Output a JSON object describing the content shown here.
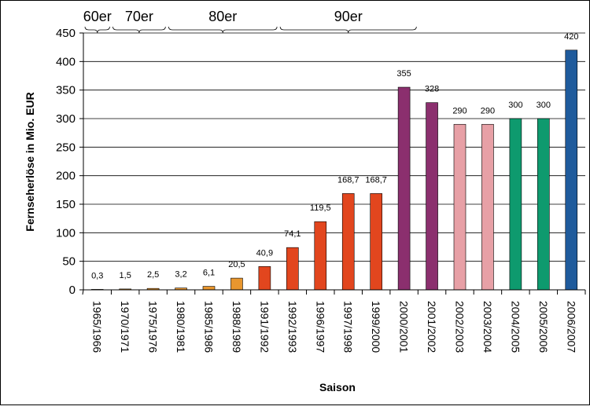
{
  "chart_data": {
    "type": "bar",
    "xlabel": "Saison",
    "ylabel": "Fernseherlöse in Mio. EUR",
    "ylim": [
      0,
      450
    ],
    "yticks": [
      0,
      50,
      100,
      150,
      200,
      250,
      300,
      350,
      400,
      450
    ],
    "grid": true,
    "categories": [
      "1965/1966",
      "1970/1971",
      "1975/1976",
      "1980/1981",
      "1985/1986",
      "1988/1989",
      "1991/1992",
      "1992/1993",
      "1996/1997",
      "1997/1998",
      "1999/2000",
      "2000/2001",
      "2001/2002",
      "2002/2003",
      "2003/2004",
      "2004/2005",
      "2005/2006",
      "2006/2007"
    ],
    "values": [
      0.3,
      1.5,
      2.5,
      3.2,
      6.1,
      20.5,
      40.9,
      74.1,
      119.5,
      168.7,
      168.7,
      355,
      328,
      290,
      290,
      300,
      300,
      420
    ],
    "value_labels": [
      "0,3",
      "1,5",
      "2,5",
      "3,2",
      "6,1",
      "20,5",
      "40,9",
      "74,1",
      "119,5",
      "168,7",
      "168,7",
      "355",
      "328",
      "290",
      "290",
      "300",
      "300",
      "420"
    ],
    "bar_colors": [
      "#E8962E",
      "#E8962E",
      "#E8962E",
      "#E8962E",
      "#E8962E",
      "#E8962E",
      "#E2461E",
      "#E2461E",
      "#E2461E",
      "#E2461E",
      "#E2461E",
      "#8B2F6E",
      "#8B2F6E",
      "#E7A0A6",
      "#E7A0A6",
      "#0E9A6E",
      "#0E9A6E",
      "#1F5B9C"
    ],
    "decades": [
      {
        "label": "60er",
        "from": 0,
        "to": 1
      },
      {
        "label": "70er",
        "from": 1,
        "to": 3
      },
      {
        "label": "80er",
        "from": 3,
        "to": 7
      },
      {
        "label": "90er",
        "from": 7,
        "to": 12
      }
    ]
  }
}
